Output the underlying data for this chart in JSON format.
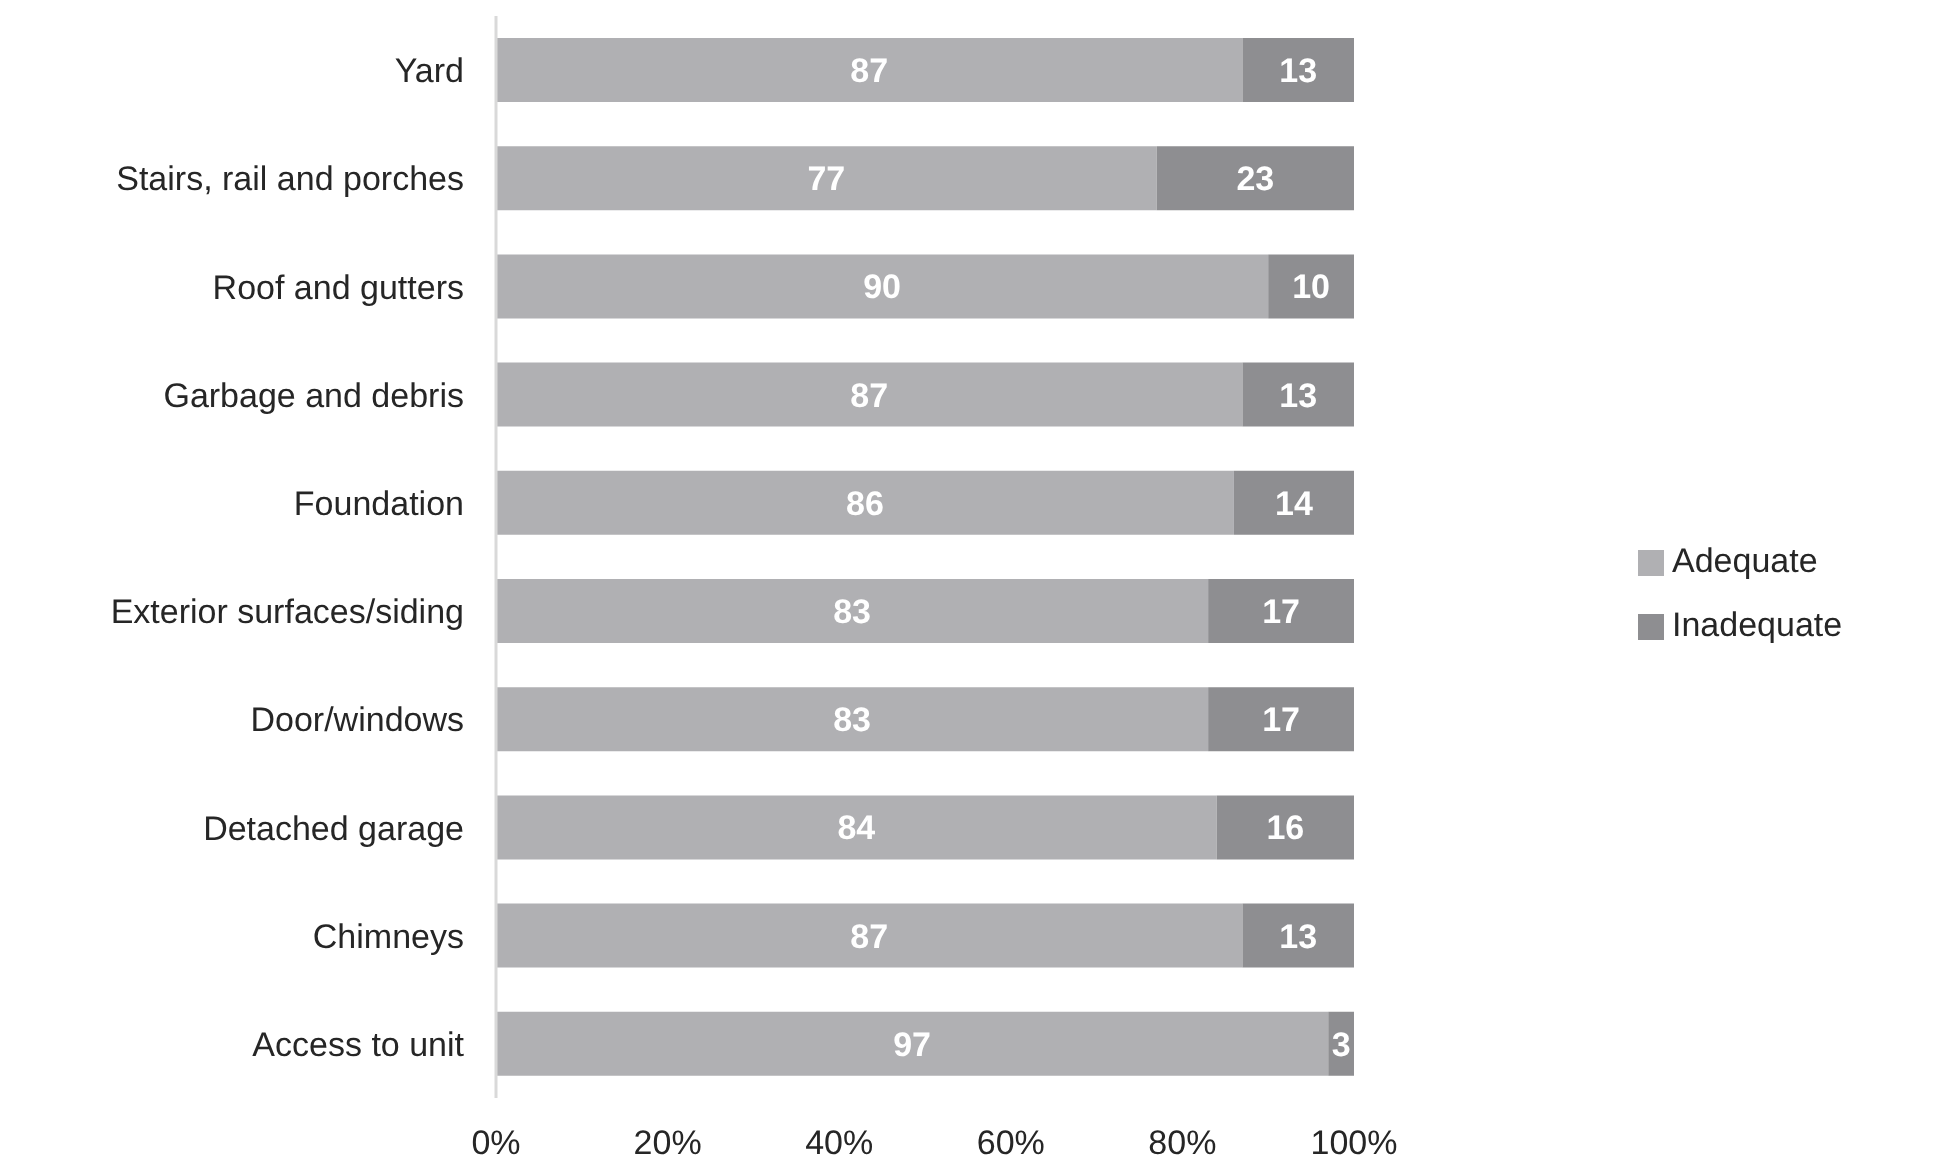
{
  "chart_data": {
    "type": "bar",
    "orientation": "horizontal",
    "stacked": true,
    "categories": [
      "Yard",
      "Stairs, rail and porches",
      "Roof and gutters",
      "Garbage and debris",
      "Foundation",
      "Exterior surfaces/siding",
      "Door/windows",
      "Detached garage",
      "Chimneys",
      "Access to unit"
    ],
    "series": [
      {
        "name": "Adequate",
        "color": "#b0b0b3",
        "values": [
          87,
          77,
          90,
          87,
          86,
          83,
          83,
          84,
          87,
          97
        ]
      },
      {
        "name": "Inadequate",
        "color": "#8e8e91",
        "values": [
          13,
          23,
          10,
          13,
          14,
          17,
          17,
          16,
          13,
          3
        ]
      }
    ],
    "xlim": [
      0,
      100
    ],
    "xticks": [
      {
        "value": 0,
        "label": "0%"
      },
      {
        "value": 20,
        "label": "20%"
      },
      {
        "value": 40,
        "label": "40%"
      },
      {
        "value": 60,
        "label": "60%"
      },
      {
        "value": 80,
        "label": "80%"
      },
      {
        "value": 100,
        "label": "100%"
      }
    ],
    "data_labels": true,
    "grid": false,
    "legend": "right"
  }
}
